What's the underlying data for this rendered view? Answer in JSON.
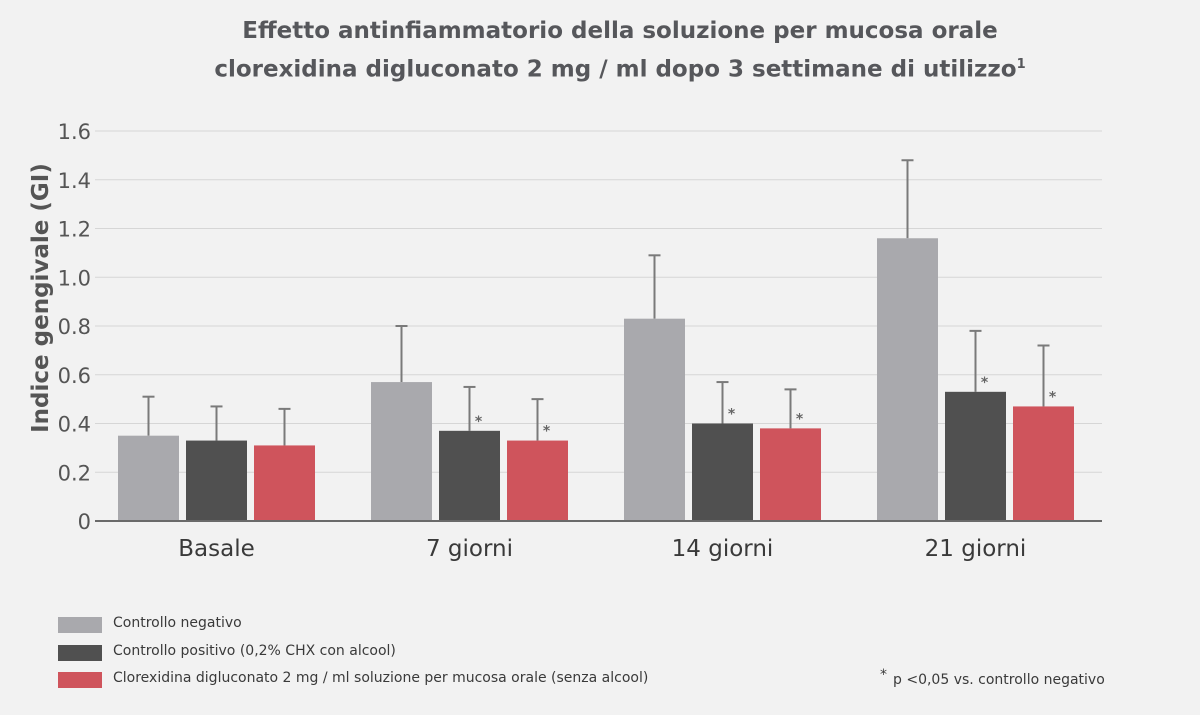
{
  "title": {
    "line1": "Effetto antinfiammatorio  della soluzione per mucosa orale",
    "line2": "clorexidina digluconato 2 mg / ml dopo 3 settimane di utilizzo",
    "superscript": "1"
  },
  "chart_data": {
    "type": "bar",
    "ylabel": "Indice gengivale (GI)",
    "ylim": [
      0,
      1.6
    ],
    "yticks": [
      "0",
      "0.2",
      "0.4",
      "0.6",
      "0.8",
      "1.0",
      "1.2",
      "1.4",
      "1.6"
    ],
    "grid": true,
    "categories": [
      "Basale",
      "7 giorni",
      "14 giorni",
      "21 giorni"
    ],
    "series": [
      {
        "name": "Controllo negativo",
        "color": "#a9a9ad",
        "values": [
          0.35,
          0.57,
          0.83,
          1.16
        ],
        "error_upper": [
          0.51,
          0.8,
          1.09,
          1.48
        ],
        "significant": [
          false,
          false,
          false,
          false
        ]
      },
      {
        "name": "Controllo positivo (0,2% CHX con alcool)",
        "color": "#505050",
        "values": [
          0.33,
          0.37,
          0.4,
          0.53
        ],
        "error_upper": [
          0.47,
          0.55,
          0.57,
          0.78
        ],
        "significant": [
          false,
          true,
          true,
          true
        ]
      },
      {
        "name": "Clorexidina digluconato 2 mg / ml soluzione per mucosa orale (senza alcool)",
        "color": "#cf545c",
        "values": [
          0.31,
          0.33,
          0.38,
          0.47
        ],
        "error_upper": [
          0.46,
          0.5,
          0.54,
          0.72
        ],
        "significant": [
          false,
          true,
          true,
          true
        ]
      }
    ],
    "significance_marker": "*",
    "legend_position": "bottom-left",
    "footnote_marker": "*",
    "footnote": "p <0,05 vs. controllo negativo"
  }
}
